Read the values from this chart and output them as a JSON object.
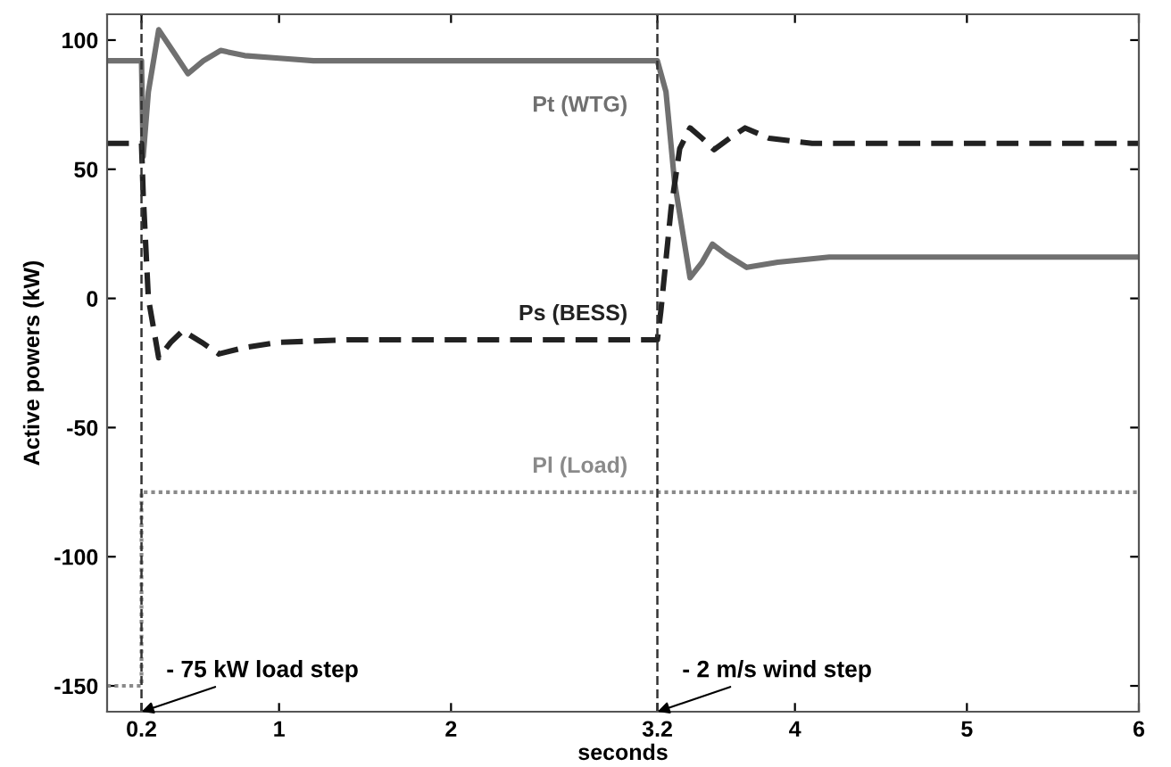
{
  "chart_data": {
    "type": "line",
    "xlabel": "seconds",
    "ylabel": "Active powers (kW)",
    "xlim": [
      0,
      6
    ],
    "ylim": [
      -160,
      110
    ],
    "xticks": [
      0.2,
      1,
      2,
      3.2,
      4,
      5,
      6
    ],
    "yticks": [
      -150,
      -100,
      -50,
      0,
      50,
      100
    ],
    "grid": false,
    "legend": false,
    "series": [
      {
        "name": "Pt (WTG)",
        "color": "#707070",
        "line_style": "solid",
        "x": [
          0,
          0.2,
          0.21,
          0.24,
          0.3,
          0.38,
          0.47,
          0.56,
          0.66,
          0.8,
          1.0,
          1.2,
          3.2,
          3.25,
          3.3,
          3.39,
          3.46,
          3.52,
          3.6,
          3.72,
          3.9,
          4.2,
          6
        ],
        "values": [
          92,
          92,
          55,
          80,
          104,
          96,
          87,
          92,
          96,
          94,
          93,
          92,
          92,
          80,
          45,
          8,
          14,
          21,
          17,
          12,
          14,
          16,
          16
        ]
      },
      {
        "name": "Ps (BESS)",
        "color": "#222222",
        "line_style": "dashed",
        "x": [
          0,
          0.2,
          0.21,
          0.24,
          0.3,
          0.37,
          0.44,
          0.55,
          0.65,
          0.8,
          1.0,
          1.4,
          3.2,
          3.22,
          3.28,
          3.33,
          3.39,
          3.46,
          3.53,
          3.62,
          3.71,
          3.85,
          4.1,
          6
        ],
        "values": [
          60,
          60,
          40,
          0,
          -23,
          -17,
          -12.5,
          -17,
          -21.5,
          -19,
          -17,
          -16,
          -16,
          -5,
          35,
          58,
          66,
          62,
          57.6,
          62,
          66,
          62,
          60,
          60
        ]
      },
      {
        "name": "Pl (Load)",
        "color": "#8a8a8a",
        "line_style": "dotted",
        "x": [
          0,
          0.2,
          0.2,
          6
        ],
        "values": [
          -150,
          -150,
          -75,
          -75
        ]
      }
    ],
    "ref_lines": [
      {
        "axis": "x",
        "value": 0.2,
        "color": "#333333",
        "line_style": "dashed"
      },
      {
        "axis": "x",
        "value": 3.2,
        "color": "#333333",
        "line_style": "dashed"
      }
    ],
    "annotations": [
      {
        "text": "- 75 kW load step",
        "x": 0.2,
        "y": -160
      },
      {
        "text": "- 2 m/s wind step",
        "x": 3.2,
        "y": -160
      }
    ]
  }
}
